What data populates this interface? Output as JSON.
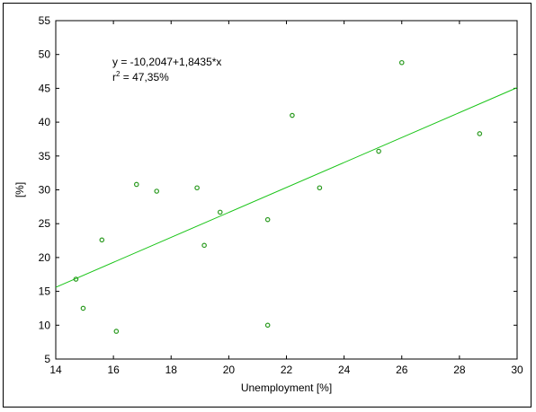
{
  "chart_data": {
    "type": "scatter",
    "xlabel": "Unemployment [%]",
    "ylabel": "[%]",
    "xlim": [
      14,
      30
    ],
    "ylim": [
      5,
      55
    ],
    "xticks": [
      14,
      16,
      18,
      20,
      22,
      24,
      26,
      28,
      30
    ],
    "yticks": [
      5,
      10,
      15,
      20,
      25,
      30,
      35,
      40,
      45,
      50,
      55
    ],
    "grid": false,
    "points": [
      {
        "x": 14.7,
        "y": 16.8
      },
      {
        "x": 14.95,
        "y": 12.5
      },
      {
        "x": 15.6,
        "y": 22.6
      },
      {
        "x": 16.1,
        "y": 9.1
      },
      {
        "x": 16.8,
        "y": 30.8
      },
      {
        "x": 17.5,
        "y": 29.8
      },
      {
        "x": 18.9,
        "y": 30.3
      },
      {
        "x": 19.15,
        "y": 21.8
      },
      {
        "x": 19.7,
        "y": 26.7
      },
      {
        "x": 21.35,
        "y": 25.6
      },
      {
        "x": 21.35,
        "y": 10.0
      },
      {
        "x": 22.2,
        "y": 41.0
      },
      {
        "x": 23.15,
        "y": 30.3
      },
      {
        "x": 25.2,
        "y": 35.7
      },
      {
        "x": 26.0,
        "y": 48.8
      },
      {
        "x": 28.7,
        "y": 38.3
      }
    ],
    "regression": {
      "intercept": -10.2047,
      "slope": 1.8435,
      "equation_label": "y = -10,2047+1,8435*x",
      "r2_prefix": "r",
      "r2_sup": "2",
      "r2_value": " = 47,35%"
    },
    "colors": {
      "points": "#2a9a1f",
      "line": "#19c417"
    }
  }
}
